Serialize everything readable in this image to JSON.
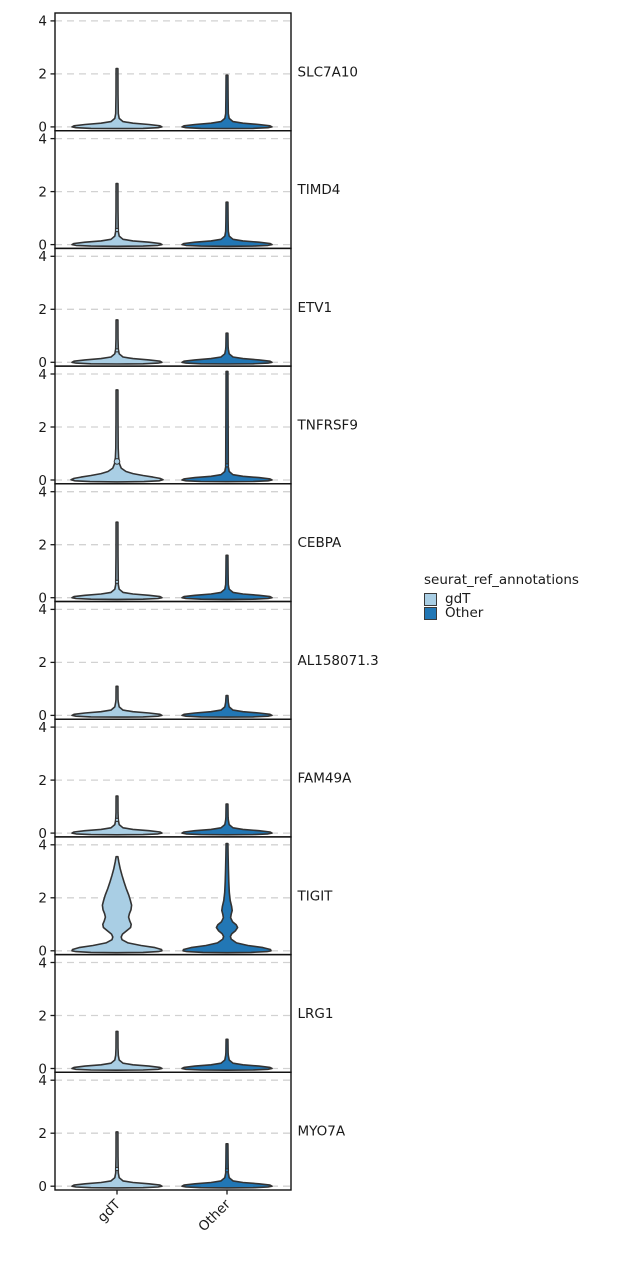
{
  "chart_data": {
    "type": "violin",
    "title": "",
    "xlabel": "",
    "ylabel": "",
    "categories": [
      "gdT",
      "Other"
    ],
    "ylim": [
      0,
      4
    ],
    "yticks": [
      0,
      2,
      4
    ],
    "grid": "dashed horizontal lines at each y tick",
    "legend": {
      "title": "seurat_ref_annotations",
      "position": "right-center",
      "entries": [
        {
          "label": "gdT",
          "color": "#a9cee4"
        },
        {
          "label": "Other",
          "color": "#2277b5"
        }
      ]
    },
    "colors": {
      "outline": "#333333",
      "grid": "#d2d2d2",
      "axis": "#1a1a1a",
      "text": "#1a1a1a",
      "background": "#ffffff"
    },
    "panels": [
      {
        "gene": "SLC7A10",
        "violins": [
          {
            "category": "gdT",
            "max": 2.2,
            "points": []
          },
          {
            "category": "Other",
            "max": 1.95,
            "points": []
          }
        ]
      },
      {
        "gene": "TIMD4",
        "violins": [
          {
            "category": "gdT",
            "max": 2.3,
            "points": [
              0.55
            ]
          },
          {
            "category": "Other",
            "max": 1.6,
            "points": []
          }
        ]
      },
      {
        "gene": "ETV1",
        "violins": [
          {
            "category": "gdT",
            "max": 1.6,
            "points": [
              0.45
            ]
          },
          {
            "category": "Other",
            "max": 1.1,
            "points": []
          }
        ]
      },
      {
        "gene": "TNFRSF9",
        "violins": [
          {
            "category": "gdT",
            "max": 3.4,
            "points": [
              {
                "y": 0.7,
                "r": 2.8
              }
            ],
            "profile": [
              [
                3.4,
                0.9
              ],
              [
                2.2,
                1.0
              ],
              [
                1.2,
                1.2
              ],
              [
                0.85,
                1.6
              ],
              [
                0.62,
                2.4
              ],
              [
                0.45,
                4.2
              ],
              [
                0.32,
                9
              ],
              [
                0.24,
                16
              ],
              [
                0.17,
                26
              ],
              [
                0.11,
                36
              ],
              [
                0.06,
                43
              ],
              [
                0.01,
                46
              ],
              [
                -0.03,
                42
              ],
              [
                -0.06,
                27
              ],
              [
                -0.07,
                0
              ]
            ]
          },
          {
            "category": "Other",
            "max": 4.1,
            "points": [
              0.55
            ]
          }
        ]
      },
      {
        "gene": "CEBPA",
        "violins": [
          {
            "category": "gdT",
            "max": 2.85,
            "points": [
              0.6
            ]
          },
          {
            "category": "Other",
            "max": 1.6,
            "points": []
          }
        ]
      },
      {
        "gene": "AL158071.3",
        "violins": [
          {
            "category": "gdT",
            "max": 1.1,
            "points": []
          },
          {
            "category": "Other",
            "max": 0.75,
            "points": []
          }
        ]
      },
      {
        "gene": "FAM49A",
        "violins": [
          {
            "category": "gdT",
            "max": 1.4,
            "points": [
              0.5
            ]
          },
          {
            "category": "Other",
            "max": 1.1,
            "points": []
          }
        ]
      },
      {
        "gene": "TIGIT",
        "violins": [
          {
            "category": "gdT",
            "max": 3.55,
            "points": [],
            "profile": [
              [
                3.55,
                0.9
              ],
              [
                3.35,
                1.8
              ],
              [
                3.1,
                3.2
              ],
              [
                2.85,
                5
              ],
              [
                2.6,
                7
              ],
              [
                2.35,
                9.2
              ],
              [
                2.1,
                11.8
              ],
              [
                1.9,
                13.4
              ],
              [
                1.72,
                14.6
              ],
              [
                1.55,
                14.0
              ],
              [
                1.4,
                12.4
              ],
              [
                1.27,
                11.6
              ],
              [
                1.12,
                12.8
              ],
              [
                1.0,
                14.2
              ],
              [
                0.88,
                13.6
              ],
              [
                0.75,
                9.5
              ],
              [
                0.63,
                5.5
              ],
              [
                0.52,
                4.2
              ],
              [
                0.42,
                5
              ],
              [
                0.3,
                11
              ],
              [
                0.2,
                24
              ],
              [
                0.12,
                38
              ],
              [
                0.05,
                44.5
              ],
              [
                0,
                45
              ],
              [
                -0.03,
                41
              ],
              [
                -0.06,
                26
              ],
              [
                -0.07,
                0
              ]
            ]
          },
          {
            "category": "Other",
            "max": 4.05,
            "points": [],
            "profile": [
              [
                4.05,
                0.9
              ],
              [
                3.6,
                1.1
              ],
              [
                3.1,
                1.4
              ],
              [
                2.6,
                1.8
              ],
              [
                2.2,
                2.3
              ],
              [
                1.9,
                3.2
              ],
              [
                1.68,
                4.6
              ],
              [
                1.52,
                5.2
              ],
              [
                1.38,
                4.2
              ],
              [
                1.25,
                3.6
              ],
              [
                1.1,
                5.5
              ],
              [
                0.98,
                9.2
              ],
              [
                0.88,
                10.6
              ],
              [
                0.76,
                8.5
              ],
              [
                0.64,
                4.8
              ],
              [
                0.54,
                3.4
              ],
              [
                0.44,
                4.2
              ],
              [
                0.3,
                9.5
              ],
              [
                0.2,
                21
              ],
              [
                0.12,
                36
              ],
              [
                0.05,
                43.5
              ],
              [
                0,
                44
              ],
              [
                -0.03,
                40
              ],
              [
                -0.06,
                24
              ],
              [
                -0.07,
                0
              ]
            ]
          }
        ]
      },
      {
        "gene": "LRG1",
        "violins": [
          {
            "category": "gdT",
            "max": 1.4,
            "points": []
          },
          {
            "category": "Other",
            "max": 1.1,
            "points": []
          }
        ]
      },
      {
        "gene": "MYO7A",
        "violins": [
          {
            "category": "gdT",
            "max": 2.05,
            "points": [
              0.65
            ]
          },
          {
            "category": "Other",
            "max": 1.6,
            "points": [
              0.6
            ]
          }
        ]
      }
    ]
  }
}
